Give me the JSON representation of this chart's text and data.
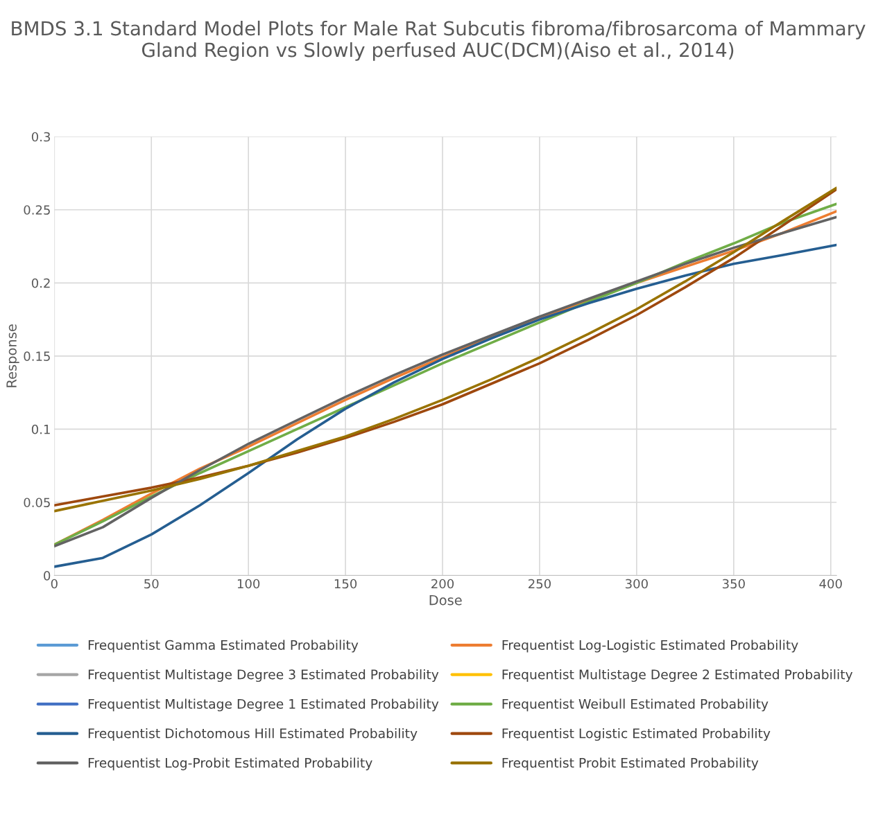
{
  "chart_data": {
    "type": "line",
    "title": "BMDS 3.1 Standard Model Plots for Male Rat Subcutis fibroma/fibrosarcoma of Mammary Gland Region vs Slowly perfused AUC(DCM)(Aiso et al., 2014)",
    "xlabel": "Dose",
    "ylabel": "Response",
    "x": [
      0,
      25,
      50,
      75,
      100,
      125,
      150,
      175,
      200,
      225,
      250,
      275,
      300,
      325,
      350,
      375,
      403
    ],
    "xlim": [
      0,
      403
    ],
    "xticks": [
      0,
      50,
      100,
      150,
      200,
      250,
      300,
      350,
      400
    ],
    "ylim": [
      0,
      0.3
    ],
    "yticks": [
      0,
      0.05,
      0.1,
      0.15,
      0.2,
      0.25,
      0.3
    ],
    "grid": true,
    "legend": "bottom",
    "marker": "none",
    "line_style": "solid",
    "series": [
      {
        "name": "Frequentist Gamma Estimated Probability",
        "color": "#5b9bd5",
        "values": [
          null,
          null,
          null,
          null,
          null,
          null,
          null,
          null,
          null,
          null,
          null,
          null,
          null,
          null,
          null,
          null,
          null
        ]
      },
      {
        "name": "Frequentist Log-Logistic Estimated Probability",
        "color": "#ed7d31",
        "values": [
          0.021,
          0.038,
          0.056,
          0.073,
          0.088,
          0.104,
          0.12,
          0.135,
          0.149,
          0.163,
          0.176,
          0.188,
          0.2,
          0.211,
          0.222,
          0.234,
          0.249
        ]
      },
      {
        "name": "Frequentist Multistage Degree 3 Estimated Probability",
        "color": "#a5a5a5",
        "values": [
          null,
          null,
          null,
          null,
          null,
          null,
          null,
          null,
          null,
          null,
          null,
          null,
          null,
          null,
          null,
          null,
          null
        ]
      },
      {
        "name": "Frequentist Multistage Degree 2 Estimated Probability",
        "color": "#ffc000",
        "values": [
          null,
          null,
          null,
          null,
          null,
          null,
          null,
          null,
          null,
          null,
          null,
          null,
          null,
          null,
          null,
          null,
          null
        ]
      },
      {
        "name": "Frequentist Multistage Degree 1 Estimated Probability",
        "color": "#4472c4",
        "values": [
          null,
          null,
          null,
          null,
          null,
          null,
          null,
          null,
          null,
          null,
          null,
          null,
          null,
          null,
          null,
          null,
          null
        ]
      },
      {
        "name": "Frequentist Weibull Estimated Probability",
        "color": "#70ad47",
        "values": [
          0.021,
          0.037,
          0.054,
          0.07,
          0.085,
          0.1,
          0.115,
          0.13,
          0.145,
          0.159,
          0.173,
          0.187,
          0.2,
          0.214,
          0.227,
          0.241,
          0.254
        ]
      },
      {
        "name": "Frequentist Dichotomous Hill Estimated Probability",
        "color": "#255e91",
        "values": [
          0.006,
          0.012,
          0.028,
          0.048,
          0.07,
          0.093,
          0.114,
          0.132,
          0.148,
          0.162,
          0.175,
          0.186,
          0.196,
          0.205,
          0.213,
          0.219,
          0.226
        ]
      },
      {
        "name": "Frequentist Logistic Estimated Probability",
        "color": "#9e480e",
        "values": [
          0.048,
          0.054,
          0.06,
          0.067,
          0.075,
          0.084,
          0.094,
          0.105,
          0.117,
          0.131,
          0.145,
          0.161,
          0.178,
          0.197,
          0.217,
          0.239,
          0.264
        ]
      },
      {
        "name": "Frequentist Log-Probit Estimated Probability",
        "color": "#636363",
        "values": [
          0.02,
          0.033,
          0.053,
          0.072,
          0.09,
          0.106,
          0.122,
          0.137,
          0.151,
          0.164,
          0.177,
          0.189,
          0.201,
          0.213,
          0.224,
          0.234,
          0.245
        ]
      },
      {
        "name": "Frequentist Probit Estimated Probability",
        "color": "#997300",
        "values": [
          0.044,
          0.051,
          0.058,
          0.066,
          0.075,
          0.085,
          0.095,
          0.107,
          0.12,
          0.134,
          0.149,
          0.165,
          0.182,
          0.201,
          0.221,
          0.242,
          0.265
        ]
      }
    ]
  }
}
